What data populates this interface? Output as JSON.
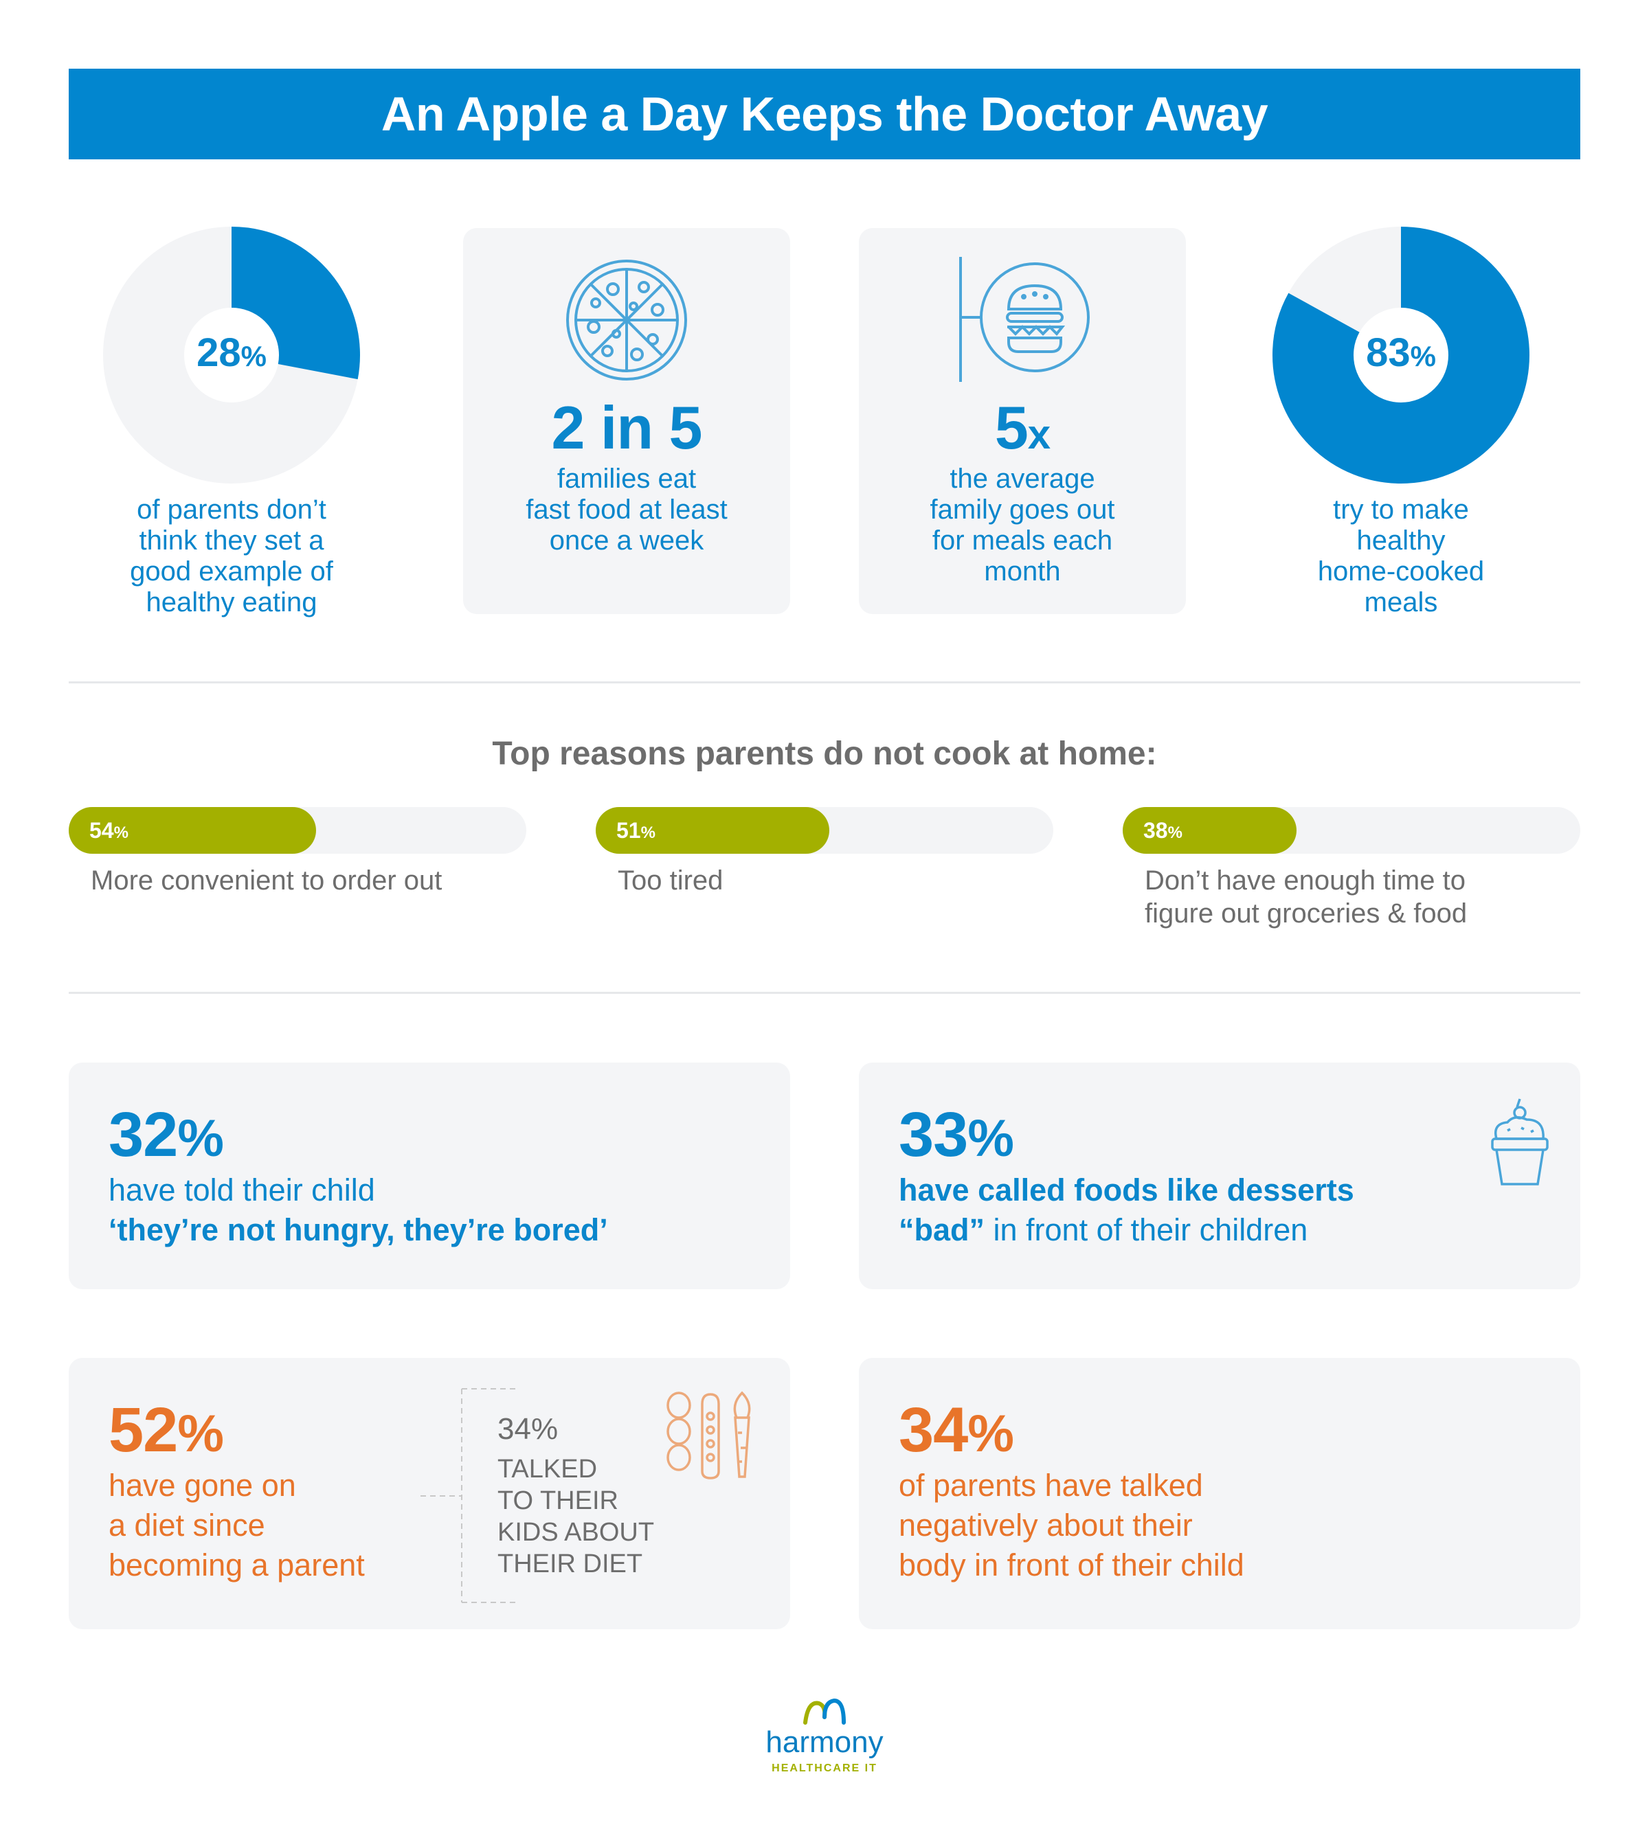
{
  "header": {
    "title": "An Apple a Day Keeps the Doctor Away"
  },
  "stats_top": [
    {
      "value": "28",
      "unit": "%",
      "fraction": 0.28,
      "caption": [
        "of parents don’t",
        "think they set a",
        "good example of",
        "healthy eating"
      ]
    },
    {
      "value": "2 in 5",
      "icon": "pizza-icon",
      "caption": [
        "families eat",
        "fast food at least",
        "once a week"
      ]
    },
    {
      "value": "5",
      "unit": "x",
      "icon": "burger-sign-icon",
      "caption": [
        "the average",
        "family goes out",
        "for meals each",
        "month"
      ]
    },
    {
      "value": "83",
      "unit": "%",
      "fraction": 0.83,
      "caption": [
        "try to make",
        "healthy",
        "home-cooked",
        "meals"
      ]
    }
  ],
  "reasons": {
    "heading": "Top reasons parents do not cook at home:",
    "items": [
      {
        "value": "54",
        "unit": "%",
        "fraction": 0.54,
        "caption": [
          "More convenient to order out"
        ]
      },
      {
        "value": "51",
        "unit": "%",
        "fraction": 0.51,
        "caption": [
          "Too tired"
        ]
      },
      {
        "value": "38",
        "unit": "%",
        "fraction": 0.38,
        "caption": [
          "Don’t have enough time to",
          "figure out groceries & food"
        ]
      }
    ]
  },
  "cards": {
    "bored": {
      "value": "32",
      "unit": "%",
      "line1": "have told their child",
      "line2": "‘they’re not hungry, they’re bored’"
    },
    "desserts": {
      "value": "33",
      "unit": "%",
      "line1": "have called foods like desserts",
      "line2_bold": "“bad”",
      "line2_rest": " in front of their children",
      "icon": "cupcake-icon"
    },
    "diet": {
      "value": "52",
      "unit": "%",
      "lines": [
        "have gone on",
        "a diet since",
        "becoming a parent"
      ],
      "sub_value": "34%",
      "sub_lines": [
        "TALKED",
        "TO THEIR",
        "KIDS ABOUT",
        "THEIR DIET"
      ],
      "icon": "vegetables-icon"
    },
    "body": {
      "value": "34",
      "unit": "%",
      "lines": [
        "of parents have talked",
        "negatively about their",
        "body in front of their child"
      ]
    }
  },
  "footer": {
    "logo_word": "harmony",
    "logo_sub": "HEALTHCARE IT"
  },
  "colors": {
    "blue": "#0286cf",
    "green": "#a3b000",
    "orange": "#e8742a",
    "card_bg": "#f4f5f7"
  }
}
